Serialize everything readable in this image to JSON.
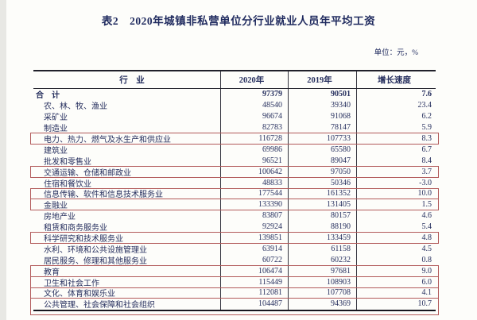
{
  "page": {
    "title": "表2　2020年城镇非私营单位分行业就业人员年平均工资",
    "unit_note": "单位：元，%",
    "highlight_color": "#b25a5a",
    "text_color": "#1f2a5e"
  },
  "table": {
    "headers": [
      "行　业",
      "2020年",
      "2019年",
      "增长速度"
    ],
    "rows": [
      {
        "name": "合　计",
        "v2020": "97379",
        "v2019": "90501",
        "growth": "7.6",
        "bold": true,
        "indent": false,
        "highlighted": false
      },
      {
        "name": "农、林、牧、渔业",
        "v2020": "48540",
        "v2019": "39340",
        "growth": "23.4",
        "bold": false,
        "indent": true,
        "highlighted": false
      },
      {
        "name": "采矿业",
        "v2020": "96674",
        "v2019": "91068",
        "growth": "6.2",
        "bold": false,
        "indent": true,
        "highlighted": false
      },
      {
        "name": "制造业",
        "v2020": "82783",
        "v2019": "78147",
        "growth": "5.9",
        "bold": false,
        "indent": true,
        "highlighted": false
      },
      {
        "name": "电力、热力、燃气及水生产和供应业",
        "v2020": "116728",
        "v2019": "107733",
        "growth": "8.3",
        "bold": false,
        "indent": true,
        "highlighted": true
      },
      {
        "name": "建筑业",
        "v2020": "69986",
        "v2019": "65580",
        "growth": "6.7",
        "bold": false,
        "indent": true,
        "highlighted": false
      },
      {
        "name": "批发和零售业",
        "v2020": "96521",
        "v2019": "89047",
        "growth": "8.4",
        "bold": false,
        "indent": true,
        "highlighted": false
      },
      {
        "name": "交通运输、仓储和邮政业",
        "v2020": "100642",
        "v2019": "97050",
        "growth": "3.7",
        "bold": false,
        "indent": true,
        "highlighted": true
      },
      {
        "name": "住宿和餐饮业",
        "v2020": "48833",
        "v2019": "50346",
        "growth": "-3.0",
        "bold": false,
        "indent": true,
        "highlighted": false
      },
      {
        "name": "信息传输、软件和信息技术服务业",
        "v2020": "177544",
        "v2019": "161352",
        "growth": "10.0",
        "bold": false,
        "indent": true,
        "highlighted": true
      },
      {
        "name": "金融业",
        "v2020": "133390",
        "v2019": "131405",
        "growth": "1.5",
        "bold": false,
        "indent": true,
        "highlighted": true
      },
      {
        "name": "房地产业",
        "v2020": "83807",
        "v2019": "80157",
        "growth": "4.6",
        "bold": false,
        "indent": true,
        "highlighted": false
      },
      {
        "name": "租赁和商务服务业",
        "v2020": "92924",
        "v2019": "88190",
        "growth": "5.4",
        "bold": false,
        "indent": true,
        "highlighted": false
      },
      {
        "name": "科学研究和技术服务业",
        "v2020": "139851",
        "v2019": "133459",
        "growth": "4.8",
        "bold": false,
        "indent": true,
        "highlighted": true
      },
      {
        "name": "水利、环境和公共设施管理业",
        "v2020": "63914",
        "v2019": "61158",
        "growth": "4.5",
        "bold": false,
        "indent": true,
        "highlighted": false
      },
      {
        "name": "居民服务、修理和其他服务业",
        "v2020": "60722",
        "v2019": "60232",
        "growth": "0.8",
        "bold": false,
        "indent": true,
        "highlighted": false
      },
      {
        "name": "教育",
        "v2020": "106474",
        "v2019": "97681",
        "growth": "9.0",
        "bold": false,
        "indent": true,
        "highlighted": true
      },
      {
        "name": "卫生和社会工作",
        "v2020": "115449",
        "v2019": "108903",
        "growth": "6.0",
        "bold": false,
        "indent": true,
        "highlighted": true
      },
      {
        "name": "文化、体育和娱乐业",
        "v2020": "112081",
        "v2019": "107708",
        "growth": "4.1",
        "bold": false,
        "indent": true,
        "highlighted": true
      },
      {
        "name": "公共管理、社会保障和社会组织",
        "v2020": "104487",
        "v2019": "94369",
        "growth": "10.7",
        "bold": false,
        "indent": true,
        "highlighted": true,
        "tall_box": true
      }
    ]
  }
}
